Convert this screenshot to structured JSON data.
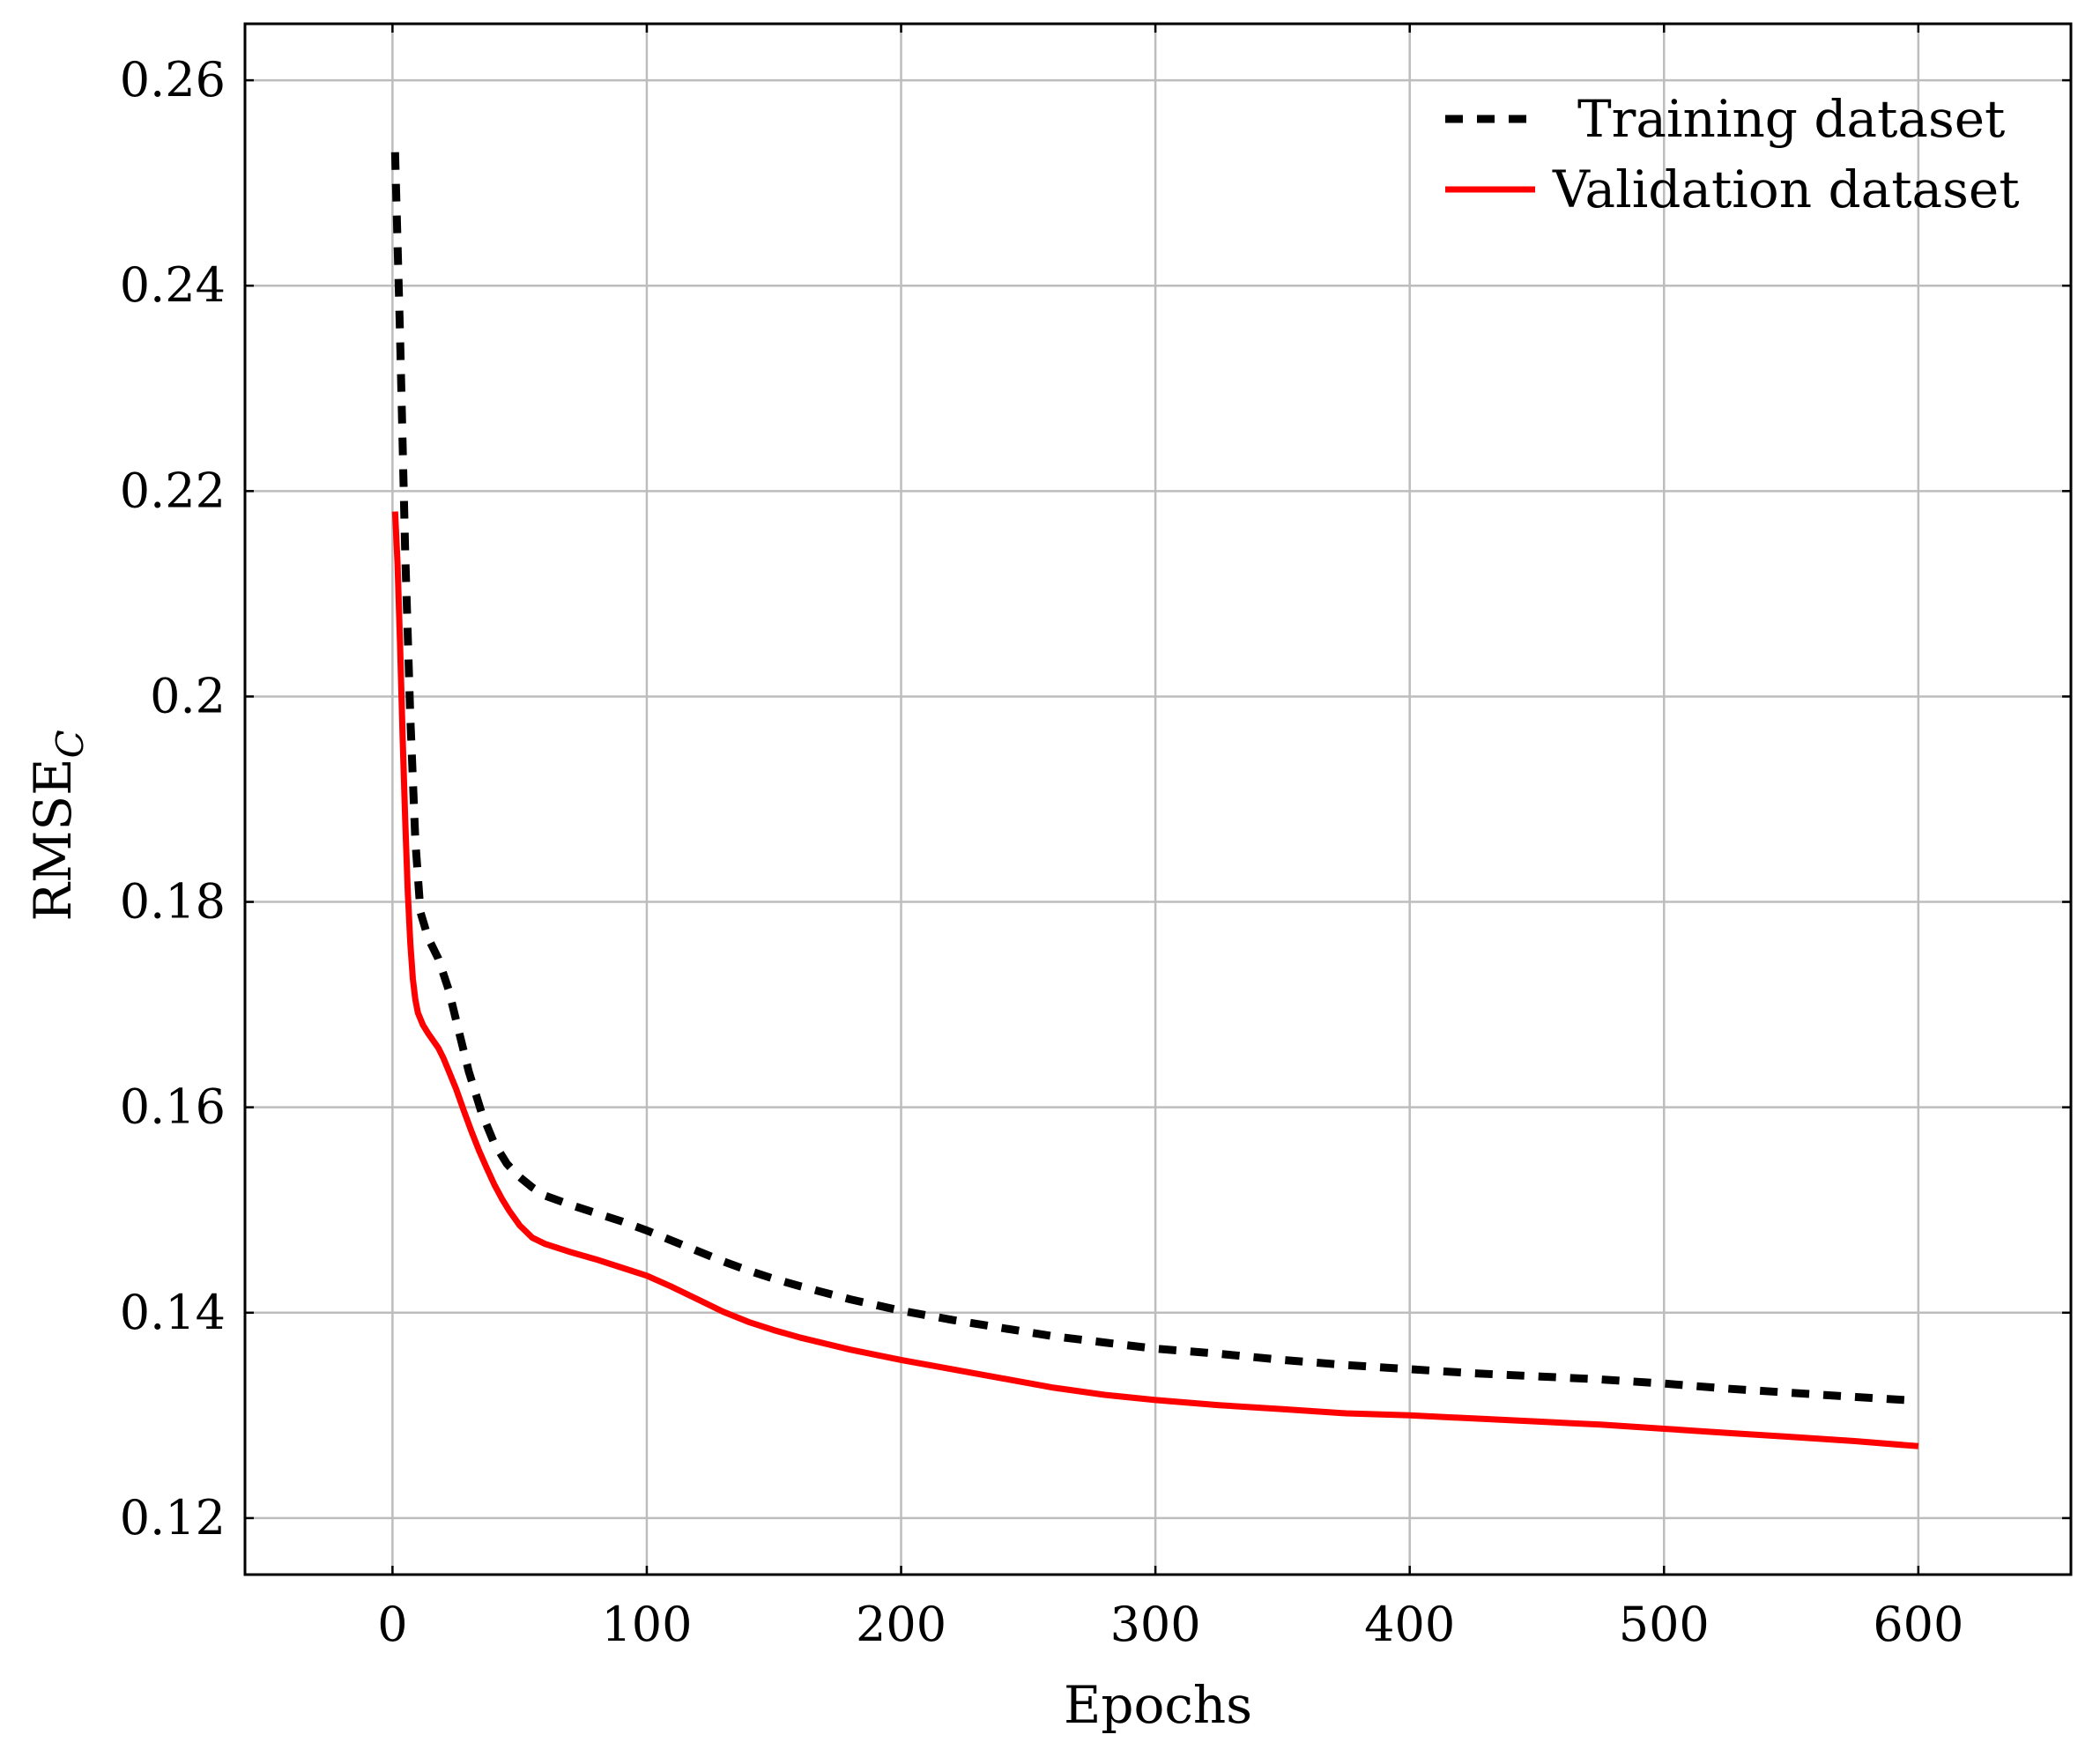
{
  "chart_data": {
    "type": "line",
    "title": "",
    "xlabel": "Epochs",
    "ylabel": "RMSE",
    "ylabel_subscript": "C",
    "xlim": [
      -58,
      660
    ],
    "ylim": [
      0.1145,
      0.2655
    ],
    "xticks": [
      0,
      100,
      200,
      300,
      400,
      500,
      600
    ],
    "yticks": [
      0.12,
      0.14,
      0.16,
      0.18,
      0.2,
      0.22,
      0.24,
      0.26
    ],
    "xtick_labels": [
      "0",
      "100",
      "200",
      "300",
      "400",
      "500",
      "600"
    ],
    "ytick_labels": [
      "0.12",
      "0.14",
      "0.16",
      "0.18",
      "0.2",
      "0.22",
      "0.24",
      "0.26"
    ],
    "grid": true,
    "legend_position": "top-right",
    "series": [
      {
        "name": "Training dataset",
        "style": "dashed",
        "color": "#000000",
        "x": [
          1,
          3,
          5,
          7,
          9,
          11,
          14,
          18,
          22,
          26,
          30,
          35,
          40,
          45,
          50,
          55,
          60,
          70,
          80,
          90,
          100,
          110,
          120,
          130,
          140,
          150,
          160,
          180,
          200,
          220,
          240,
          260,
          280,
          300,
          325,
          350,
          375,
          400,
          425,
          450,
          475,
          500,
          525,
          550,
          575,
          595
        ],
        "y": [
          0.253,
          0.235,
          0.214,
          0.198,
          0.186,
          0.179,
          0.1765,
          0.1745,
          0.1715,
          0.1675,
          0.1635,
          0.1595,
          0.1565,
          0.1545,
          0.1532,
          0.1522,
          0.1514,
          0.1505,
          0.1497,
          0.1489,
          0.148,
          0.147,
          0.146,
          0.145,
          0.1441,
          0.1433,
          0.1426,
          0.1413,
          0.1402,
          0.1393,
          0.1385,
          0.1377,
          0.1371,
          0.1365,
          0.136,
          0.1354,
          0.1349,
          0.1345,
          0.1341,
          0.1338,
          0.1335,
          0.1331,
          0.1326,
          0.1322,
          0.1318,
          0.1315
        ]
      },
      {
        "name": "Validation dataset",
        "style": "solid",
        "color": "#ff0000",
        "x": [
          1,
          2,
          3,
          4,
          5,
          6,
          7,
          8,
          9,
          10,
          12,
          14,
          16,
          18,
          20,
          22,
          25,
          28,
          31,
          34,
          37,
          40,
          43,
          46,
          50,
          55,
          60,
          70,
          80,
          90,
          100,
          110,
          120,
          130,
          140,
          150,
          160,
          180,
          200,
          220,
          240,
          260,
          280,
          300,
          325,
          350,
          375,
          400,
          425,
          450,
          475,
          500,
          525,
          550,
          575,
          600
        ],
        "y": [
          0.218,
          0.213,
          0.205,
          0.196,
          0.188,
          0.181,
          0.176,
          0.1725,
          0.1705,
          0.1692,
          0.168,
          0.1672,
          0.1665,
          0.1658,
          0.1648,
          0.1636,
          0.1618,
          0.1597,
          0.1577,
          0.1558,
          0.1541,
          0.1525,
          0.1511,
          0.1499,
          0.1485,
          0.1473,
          0.1467,
          0.1459,
          0.1452,
          0.1444,
          0.1436,
          0.1425,
          0.1413,
          0.1401,
          0.1391,
          0.1383,
          0.1376,
          0.1364,
          0.1354,
          0.1345,
          0.1336,
          0.1327,
          0.132,
          0.1315,
          0.131,
          0.1306,
          0.1302,
          0.13,
          0.1297,
          0.1294,
          0.1291,
          0.1287,
          0.1283,
          0.1279,
          0.1275,
          0.127
        ]
      }
    ]
  }
}
